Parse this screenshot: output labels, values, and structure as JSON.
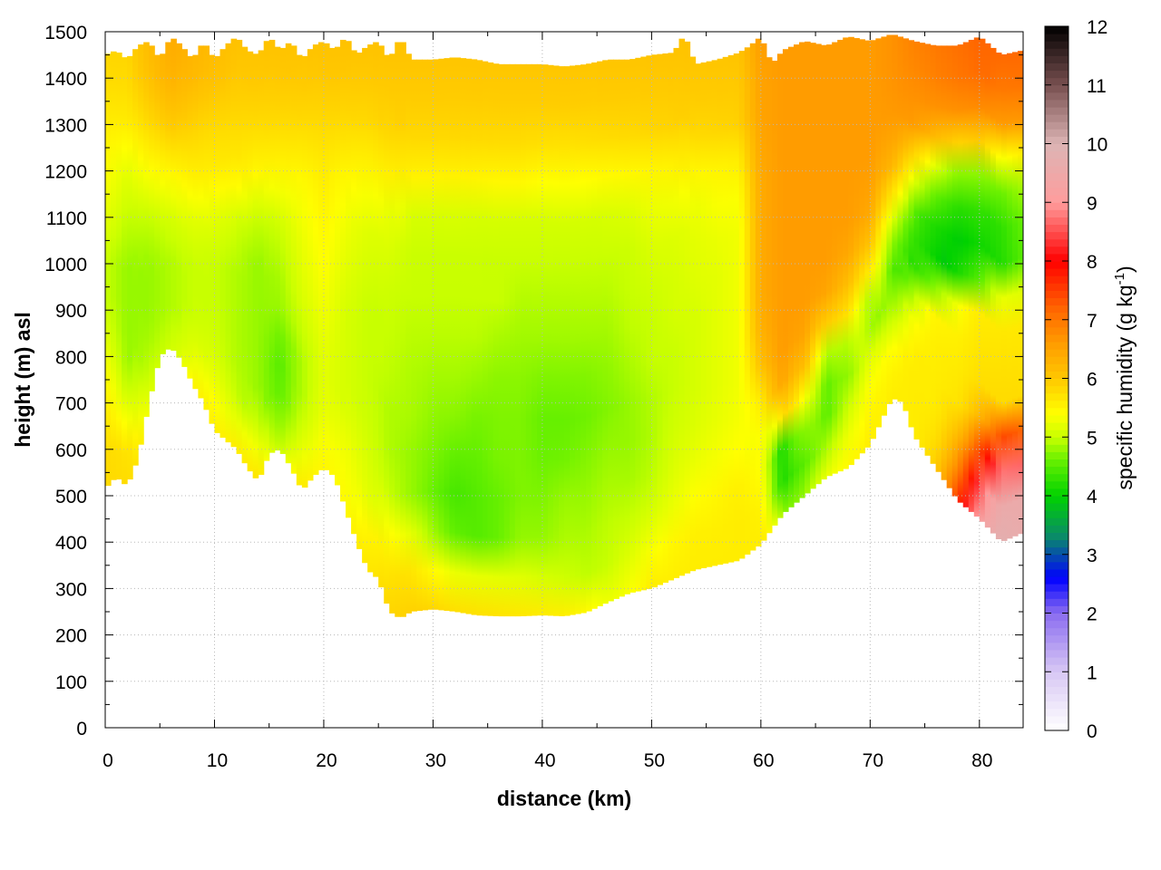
{
  "chart_data": {
    "type": "heatmap",
    "xlabel": "distance (km)",
    "ylabel": "height (m) asl",
    "colorbar_label_main": "specific humidity (g kg",
    "colorbar_label_sup": "-1",
    "colorbar_label_close": ")",
    "xlim": [
      0,
      84
    ],
    "ylim": [
      0,
      1500
    ],
    "clim": [
      0,
      12
    ],
    "grid": true,
    "x_ticks": [
      "0",
      "10",
      "20",
      "30",
      "40",
      "50",
      "60",
      "70",
      "80"
    ],
    "x_tick_values": [
      0,
      10,
      20,
      30,
      40,
      50,
      60,
      70,
      80
    ],
    "y_ticks": [
      "0",
      "100",
      "200",
      "300",
      "400",
      "500",
      "600",
      "700",
      "800",
      "900",
      "1000",
      "1100",
      "1200",
      "1300",
      "1400",
      "1500"
    ],
    "y_tick_values": [
      0,
      100,
      200,
      300,
      400,
      500,
      600,
      700,
      800,
      900,
      1000,
      1100,
      1200,
      1300,
      1400,
      1500
    ],
    "colorbar_ticks": [
      "0",
      "1",
      "2",
      "3",
      "4",
      "5",
      "6",
      "7",
      "8",
      "9",
      "10",
      "11",
      "12"
    ],
    "colorbar_tick_values": [
      0,
      1,
      2,
      3,
      4,
      5,
      6,
      7,
      8,
      9,
      10,
      11,
      12
    ],
    "colormap": [
      {
        "v": 0,
        "color": "#ffffff"
      },
      {
        "v": 1,
        "color": "#d8c8f4"
      },
      {
        "v": 2,
        "color": "#8a6cf0"
      },
      {
        "v": 2.6,
        "color": "#0000ff"
      },
      {
        "v": 3.3,
        "color": "#0a8a6a"
      },
      {
        "v": 4,
        "color": "#00d200"
      },
      {
        "v": 4.6,
        "color": "#66f000"
      },
      {
        "v": 5,
        "color": "#c8ff00"
      },
      {
        "v": 5.4,
        "color": "#ffff00"
      },
      {
        "v": 6,
        "color": "#ffc800"
      },
      {
        "v": 6.6,
        "color": "#ff9c00"
      },
      {
        "v": 7.2,
        "color": "#ff6400"
      },
      {
        "v": 8,
        "color": "#ff0000"
      },
      {
        "v": 9,
        "color": "#ff9c9c"
      },
      {
        "v": 10,
        "color": "#dcb4b4"
      },
      {
        "v": 11,
        "color": "#785050"
      },
      {
        "v": 12,
        "color": "#000000"
      }
    ],
    "terrain_km": [
      0,
      1,
      2,
      3,
      4,
      5,
      6,
      7,
      8,
      9,
      10,
      11,
      12,
      13,
      14,
      15,
      16,
      17,
      18,
      19,
      20,
      21,
      22,
      23,
      24,
      25,
      26,
      27,
      28,
      30,
      32,
      34,
      36,
      38,
      40,
      42,
      44,
      46,
      48,
      50,
      52,
      54,
      56,
      58,
      60,
      62,
      64,
      66,
      68,
      70,
      72,
      73,
      74,
      76,
      78,
      80,
      82,
      84
    ],
    "terrain_m": [
      515,
      540,
      520,
      580,
      700,
      800,
      820,
      790,
      740,
      700,
      640,
      620,
      600,
      560,
      530,
      590,
      600,
      560,
      510,
      540,
      560,
      540,
      470,
      400,
      340,
      320,
      250,
      235,
      250,
      255,
      250,
      242,
      240,
      240,
      242,
      240,
      248,
      270,
      290,
      300,
      320,
      340,
      350,
      360,
      395,
      460,
      500,
      540,
      560,
      610,
      710,
      700,
      630,
      560,
      490,
      450,
      400,
      420
    ],
    "top_km": [
      0,
      1,
      2,
      3,
      4,
      5,
      6,
      7,
      8,
      9,
      10,
      11,
      12,
      13,
      14,
      15,
      16,
      17,
      18,
      19,
      20,
      21,
      22,
      23,
      24,
      25,
      26,
      27,
      28,
      30,
      32,
      34,
      36,
      38,
      40,
      42,
      44,
      46,
      48,
      50,
      52,
      53,
      54,
      56,
      58,
      59,
      60,
      61,
      62,
      64,
      66,
      68,
      70,
      72,
      74,
      76,
      78,
      80,
      82,
      84
    ],
    "top_m": [
      1450,
      1460,
      1440,
      1470,
      1480,
      1440,
      1490,
      1470,
      1440,
      1480,
      1440,
      1470,
      1490,
      1460,
      1450,
      1490,
      1460,
      1480,
      1440,
      1470,
      1480,
      1460,
      1490,
      1450,
      1470,
      1480,
      1440,
      1490,
      1440,
      1440,
      1445,
      1440,
      1430,
      1430,
      1430,
      1425,
      1430,
      1440,
      1440,
      1450,
      1455,
      1495,
      1430,
      1440,
      1455,
      1470,
      1490,
      1430,
      1460,
      1480,
      1470,
      1490,
      1480,
      1495,
      1480,
      1470,
      1470,
      1490,
      1450,
      1460
    ],
    "humidity_field": {
      "x_km": [
        0,
        2,
        4,
        6,
        8,
        10,
        12,
        14,
        16,
        18,
        20,
        22,
        24,
        26,
        28,
        30,
        32,
        34,
        36,
        38,
        40,
        42,
        44,
        46,
        48,
        50,
        52,
        54,
        56,
        58,
        60,
        62,
        64,
        66,
        68,
        70,
        72,
        74,
        76,
        78,
        80,
        82,
        84
      ],
      "z_m": [
        200,
        300,
        400,
        500,
        600,
        700,
        800,
        900,
        1000,
        1100,
        1200,
        1300,
        1400,
        1500
      ],
      "q_g_per_kg": [
        [
          5.8,
          5.8,
          5.8,
          5.8,
          5.9,
          5.9,
          5.9,
          5.9,
          5.9,
          5.9,
          5.9,
          5.9,
          5.9,
          5.9,
          5.9,
          5.9,
          5.9,
          5.9,
          5.9,
          5.9,
          5.9,
          5.9,
          5.9,
          5.9,
          5.9,
          5.8,
          5.7,
          5.6,
          5.6,
          5.6,
          5.6,
          5.6,
          5.6,
          5.6,
          5.6,
          5.6,
          5.6,
          5.8,
          6.6,
          8.2,
          9.5,
          9.8,
          9.6
        ],
        [
          5.8,
          5.8,
          5.8,
          5.8,
          5.9,
          5.9,
          5.9,
          5.9,
          5.9,
          5.9,
          5.8,
          5.7,
          5.7,
          5.8,
          5.9,
          5.8,
          5.6,
          5.5,
          5.4,
          5.3,
          5.2,
          5.1,
          5.0,
          5.0,
          5.3,
          5.6,
          5.6,
          5.6,
          5.6,
          5.6,
          5.6,
          5.6,
          5.6,
          5.6,
          5.6,
          5.6,
          5.6,
          5.8,
          6.6,
          8.2,
          9.5,
          9.8,
          9.6
        ],
        [
          5.8,
          5.8,
          5.8,
          5.8,
          5.9,
          5.9,
          5.9,
          5.9,
          5.9,
          5.9,
          5.8,
          5.6,
          5.6,
          5.5,
          5.3,
          4.9,
          4.6,
          4.5,
          4.6,
          4.8,
          4.8,
          4.9,
          4.9,
          5.0,
          5.1,
          5.3,
          5.5,
          5.6,
          5.6,
          5.6,
          5.6,
          5.6,
          5.6,
          5.6,
          5.6,
          5.6,
          5.6,
          5.8,
          6.6,
          8.2,
          9.5,
          9.8,
          9.6
        ],
        [
          5.8,
          5.8,
          5.8,
          5.8,
          5.9,
          5.9,
          5.9,
          5.9,
          5.8,
          5.7,
          5.6,
          5.4,
          5.2,
          5.0,
          4.8,
          4.6,
          4.4,
          4.5,
          4.6,
          4.7,
          4.7,
          4.8,
          4.8,
          4.9,
          4.9,
          5.0,
          5.2,
          5.4,
          5.5,
          5.6,
          5.5,
          4.2,
          4.8,
          5.5,
          5.6,
          5.6,
          5.5,
          5.7,
          6.2,
          7.5,
          8.8,
          9.5,
          9.6
        ],
        [
          5.8,
          5.7,
          5.6,
          5.7,
          5.8,
          5.7,
          5.6,
          5.3,
          5.0,
          5.2,
          5.4,
          5.3,
          5.1,
          4.9,
          4.8,
          4.7,
          4.6,
          4.6,
          4.7,
          4.7,
          4.6,
          4.6,
          4.7,
          4.8,
          4.8,
          4.9,
          5.1,
          5.2,
          5.3,
          5.4,
          5.3,
          4.1,
          4.4,
          4.9,
          5.4,
          5.6,
          5.5,
          5.6,
          5.8,
          6.4,
          7.4,
          8.0,
          8.2
        ],
        [
          5.6,
          5.1,
          5.2,
          5.5,
          5.7,
          5.4,
          5.0,
          4.8,
          4.6,
          4.9,
          5.2,
          5.1,
          5.0,
          4.9,
          4.9,
          4.8,
          4.8,
          4.7,
          4.7,
          4.7,
          4.6,
          4.6,
          4.6,
          4.7,
          4.8,
          4.9,
          5.0,
          5.1,
          5.2,
          5.3,
          5.6,
          6.4,
          5.2,
          4.4,
          5.0,
          5.5,
          5.6,
          5.6,
          5.6,
          5.7,
          5.8,
          5.8,
          5.8
        ],
        [
          5.3,
          4.8,
          4.9,
          5.1,
          5.2,
          5.1,
          4.9,
          4.8,
          4.5,
          4.9,
          5.2,
          5.1,
          5.0,
          5.0,
          4.9,
          4.9,
          4.9,
          4.9,
          4.8,
          4.8,
          4.8,
          4.8,
          4.8,
          4.8,
          4.9,
          5.0,
          5.0,
          5.1,
          5.2,
          5.3,
          6.2,
          6.6,
          6.4,
          4.8,
          4.6,
          5.2,
          5.5,
          5.6,
          5.6,
          5.6,
          5.7,
          5.7,
          5.7
        ],
        [
          5.0,
          4.8,
          4.8,
          4.9,
          5.0,
          5.0,
          4.9,
          4.8,
          4.8,
          5.1,
          5.3,
          5.1,
          5.0,
          5.0,
          5.0,
          5.0,
          5.0,
          5.0,
          5.0,
          4.9,
          4.9,
          4.9,
          4.9,
          4.9,
          5.0,
          5.0,
          5.1,
          5.1,
          5.2,
          5.3,
          6.4,
          6.6,
          6.6,
          6.4,
          5.8,
          4.6,
          4.9,
          5.3,
          5.5,
          5.5,
          5.6,
          5.6,
          5.6
        ],
        [
          5.0,
          4.8,
          4.8,
          4.9,
          5.0,
          5.0,
          4.9,
          4.8,
          4.9,
          5.2,
          5.4,
          5.2,
          5.1,
          5.1,
          5.0,
          5.0,
          5.0,
          5.0,
          5.0,
          5.0,
          5.0,
          5.0,
          5.0,
          5.0,
          5.0,
          5.1,
          5.1,
          5.2,
          5.2,
          5.3,
          6.4,
          6.6,
          6.6,
          6.6,
          6.4,
          5.8,
          4.4,
          4.2,
          4.0,
          3.8,
          4.0,
          4.2,
          4.5
        ],
        [
          5.2,
          5.0,
          5.0,
          5.1,
          5.2,
          5.2,
          5.1,
          5.0,
          5.1,
          5.3,
          5.5,
          5.3,
          5.2,
          5.2,
          5.1,
          5.1,
          5.1,
          5.1,
          5.1,
          5.1,
          5.1,
          5.1,
          5.1,
          5.1,
          5.1,
          5.2,
          5.2,
          5.2,
          5.3,
          5.3,
          6.4,
          6.6,
          6.6,
          6.6,
          6.6,
          6.4,
          5.2,
          4.4,
          4.2,
          4.1,
          4.2,
          4.3,
          4.6
        ],
        [
          5.4,
          5.2,
          5.4,
          5.5,
          5.6,
          5.6,
          5.6,
          5.5,
          5.5,
          5.5,
          5.6,
          5.5,
          5.5,
          5.6,
          5.6,
          5.6,
          5.6,
          5.6,
          5.6,
          5.6,
          5.5,
          5.5,
          5.5,
          5.5,
          5.5,
          5.5,
          5.5,
          5.5,
          5.5,
          5.5,
          6.4,
          6.6,
          6.6,
          6.6,
          6.6,
          6.6,
          6.2,
          5.4,
          5.0,
          4.8,
          4.8,
          4.9,
          5.0
        ],
        [
          5.6,
          5.6,
          5.8,
          6.0,
          5.9,
          5.8,
          5.8,
          5.8,
          5.8,
          5.8,
          5.8,
          5.8,
          5.8,
          5.9,
          5.9,
          5.9,
          5.9,
          5.9,
          5.9,
          5.9,
          5.9,
          5.9,
          5.9,
          5.9,
          5.9,
          5.9,
          5.9,
          5.9,
          5.9,
          5.9,
          6.5,
          6.6,
          6.6,
          6.6,
          6.6,
          6.6,
          6.6,
          6.6,
          6.6,
          6.6,
          6.6,
          6.6,
          6.6
        ],
        [
          5.8,
          5.8,
          6.1,
          6.3,
          6.2,
          6.1,
          6.0,
          6.0,
          6.0,
          6.0,
          6.0,
          6.0,
          6.0,
          6.0,
          6.0,
          6.0,
          6.0,
          6.0,
          6.0,
          6.0,
          6.0,
          6.0,
          6.0,
          6.0,
          6.0,
          6.0,
          6.0,
          6.0,
          6.0,
          6.0,
          6.5,
          6.6,
          6.6,
          6.6,
          6.6,
          6.6,
          6.7,
          6.8,
          6.9,
          7.0,
          7.1,
          7.1,
          7.1
        ],
        [
          5.9,
          5.9,
          6.2,
          6.4,
          6.3,
          6.2,
          6.1,
          6.1,
          6.1,
          6.1,
          6.1,
          6.1,
          6.1,
          6.1,
          6.1,
          6.1,
          6.1,
          6.1,
          6.1,
          6.1,
          6.1,
          6.1,
          6.1,
          6.1,
          6.1,
          6.1,
          6.1,
          6.1,
          6.1,
          6.1,
          6.6,
          6.6,
          6.6,
          6.6,
          6.6,
          6.6,
          6.7,
          6.9,
          7.0,
          7.1,
          7.2,
          7.2,
          7.2
        ]
      ]
    }
  }
}
